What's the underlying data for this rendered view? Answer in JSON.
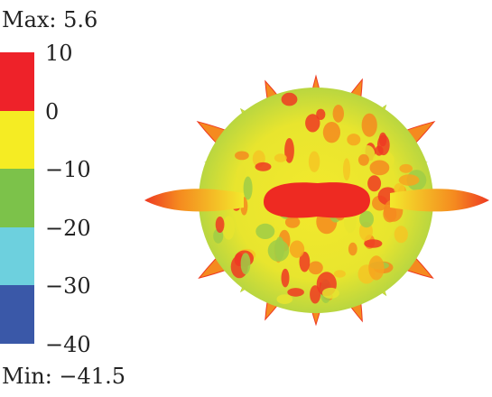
{
  "legend": {
    "max_text": "Max: 5.6",
    "min_text": "Min: −41.5",
    "ticks": [
      "10",
      "0",
      "−10",
      "−20",
      "−30",
      "−40"
    ],
    "bands": [
      {
        "from": 10,
        "to": 0,
        "color": "#ee2229"
      },
      {
        "from": 0,
        "to": -10,
        "color": "#f5ec23"
      },
      {
        "from": -10,
        "to": -20,
        "color": "#7cc24a"
      },
      {
        "from": -20,
        "to": -30,
        "color": "#6dd0de"
      },
      {
        "from": -30,
        "to": -40,
        "color": "#3a58a8"
      }
    ]
  },
  "colors": {
    "red": "#ee2229",
    "orange": "#f58a1f",
    "yellow": "#f3ea2a",
    "green": "#8cc84b"
  }
}
